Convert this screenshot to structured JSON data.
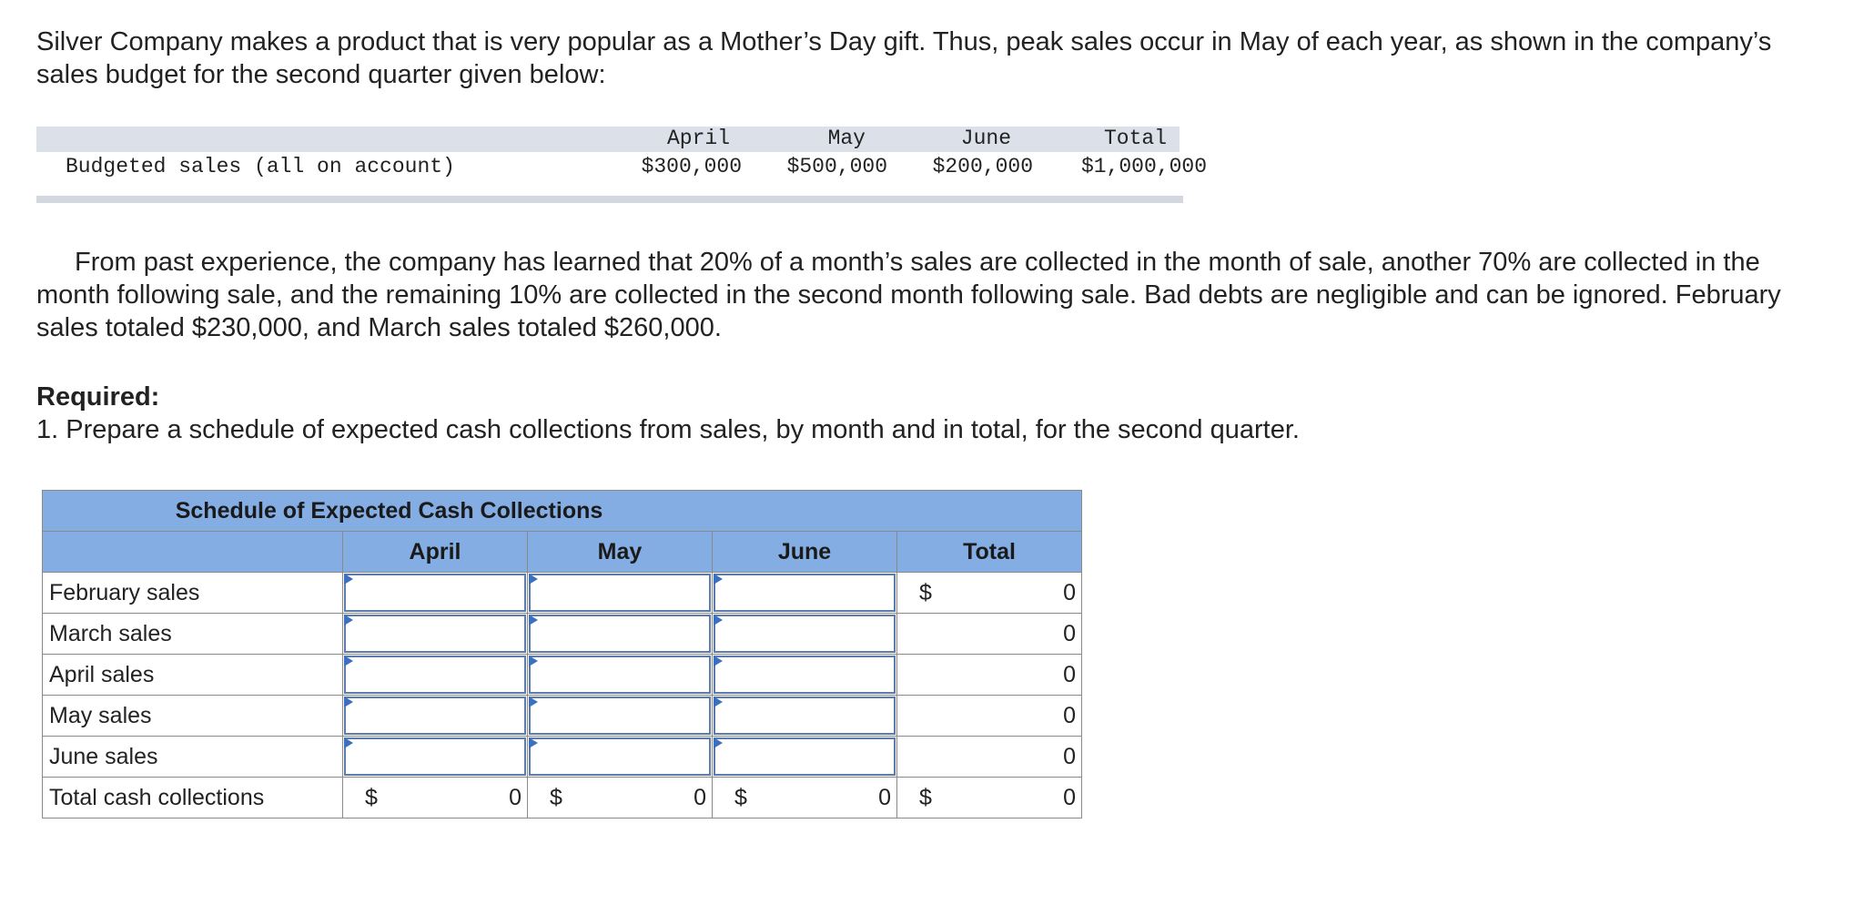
{
  "intro_text": "Silver Company makes a product that is very popular as a Mother’s Day gift. Thus, peak sales occur in May of each year, as shown in the company’s sales budget for the second quarter given below:",
  "budget": {
    "row_label": "Budgeted sales (all on account)",
    "headers": [
      "April",
      "May",
      "June",
      "Total"
    ],
    "values": [
      "$300,000",
      "$500,000",
      "$200,000",
      "$1,000,000"
    ]
  },
  "context_text": "From past experience, the company has learned that 20% of a month’s sales are collected in the month of sale, another 70% are collected in the month following sale, and the remaining 10% are collected in the second month following sale. Bad debts are negligible and can be ignored. February sales totaled $230,000, and March sales totaled $260,000.",
  "required": {
    "heading": "Required:",
    "text": "1. Prepare a schedule of expected cash collections from sales, by month and in total, for the second quarter."
  },
  "schedule": {
    "title": "Schedule of Expected Cash Collections",
    "columns": [
      "April",
      "May",
      "June",
      "Total"
    ],
    "currency_symbol": "$",
    "rows": [
      {
        "label": "February sales",
        "total": "0"
      },
      {
        "label": "March sales",
        "total": "0"
      },
      {
        "label": "April sales",
        "total": "0"
      },
      {
        "label": "May sales",
        "total": "0"
      },
      {
        "label": "June sales",
        "total": "0"
      }
    ],
    "total_row": {
      "label": "Total cash collections",
      "april": "0",
      "may": "0",
      "june": "0",
      "total": "0"
    },
    "colors": {
      "header_bg": "#84ade3",
      "input_border": "#5c7cae",
      "input_flag": "#3b6fc2"
    }
  }
}
